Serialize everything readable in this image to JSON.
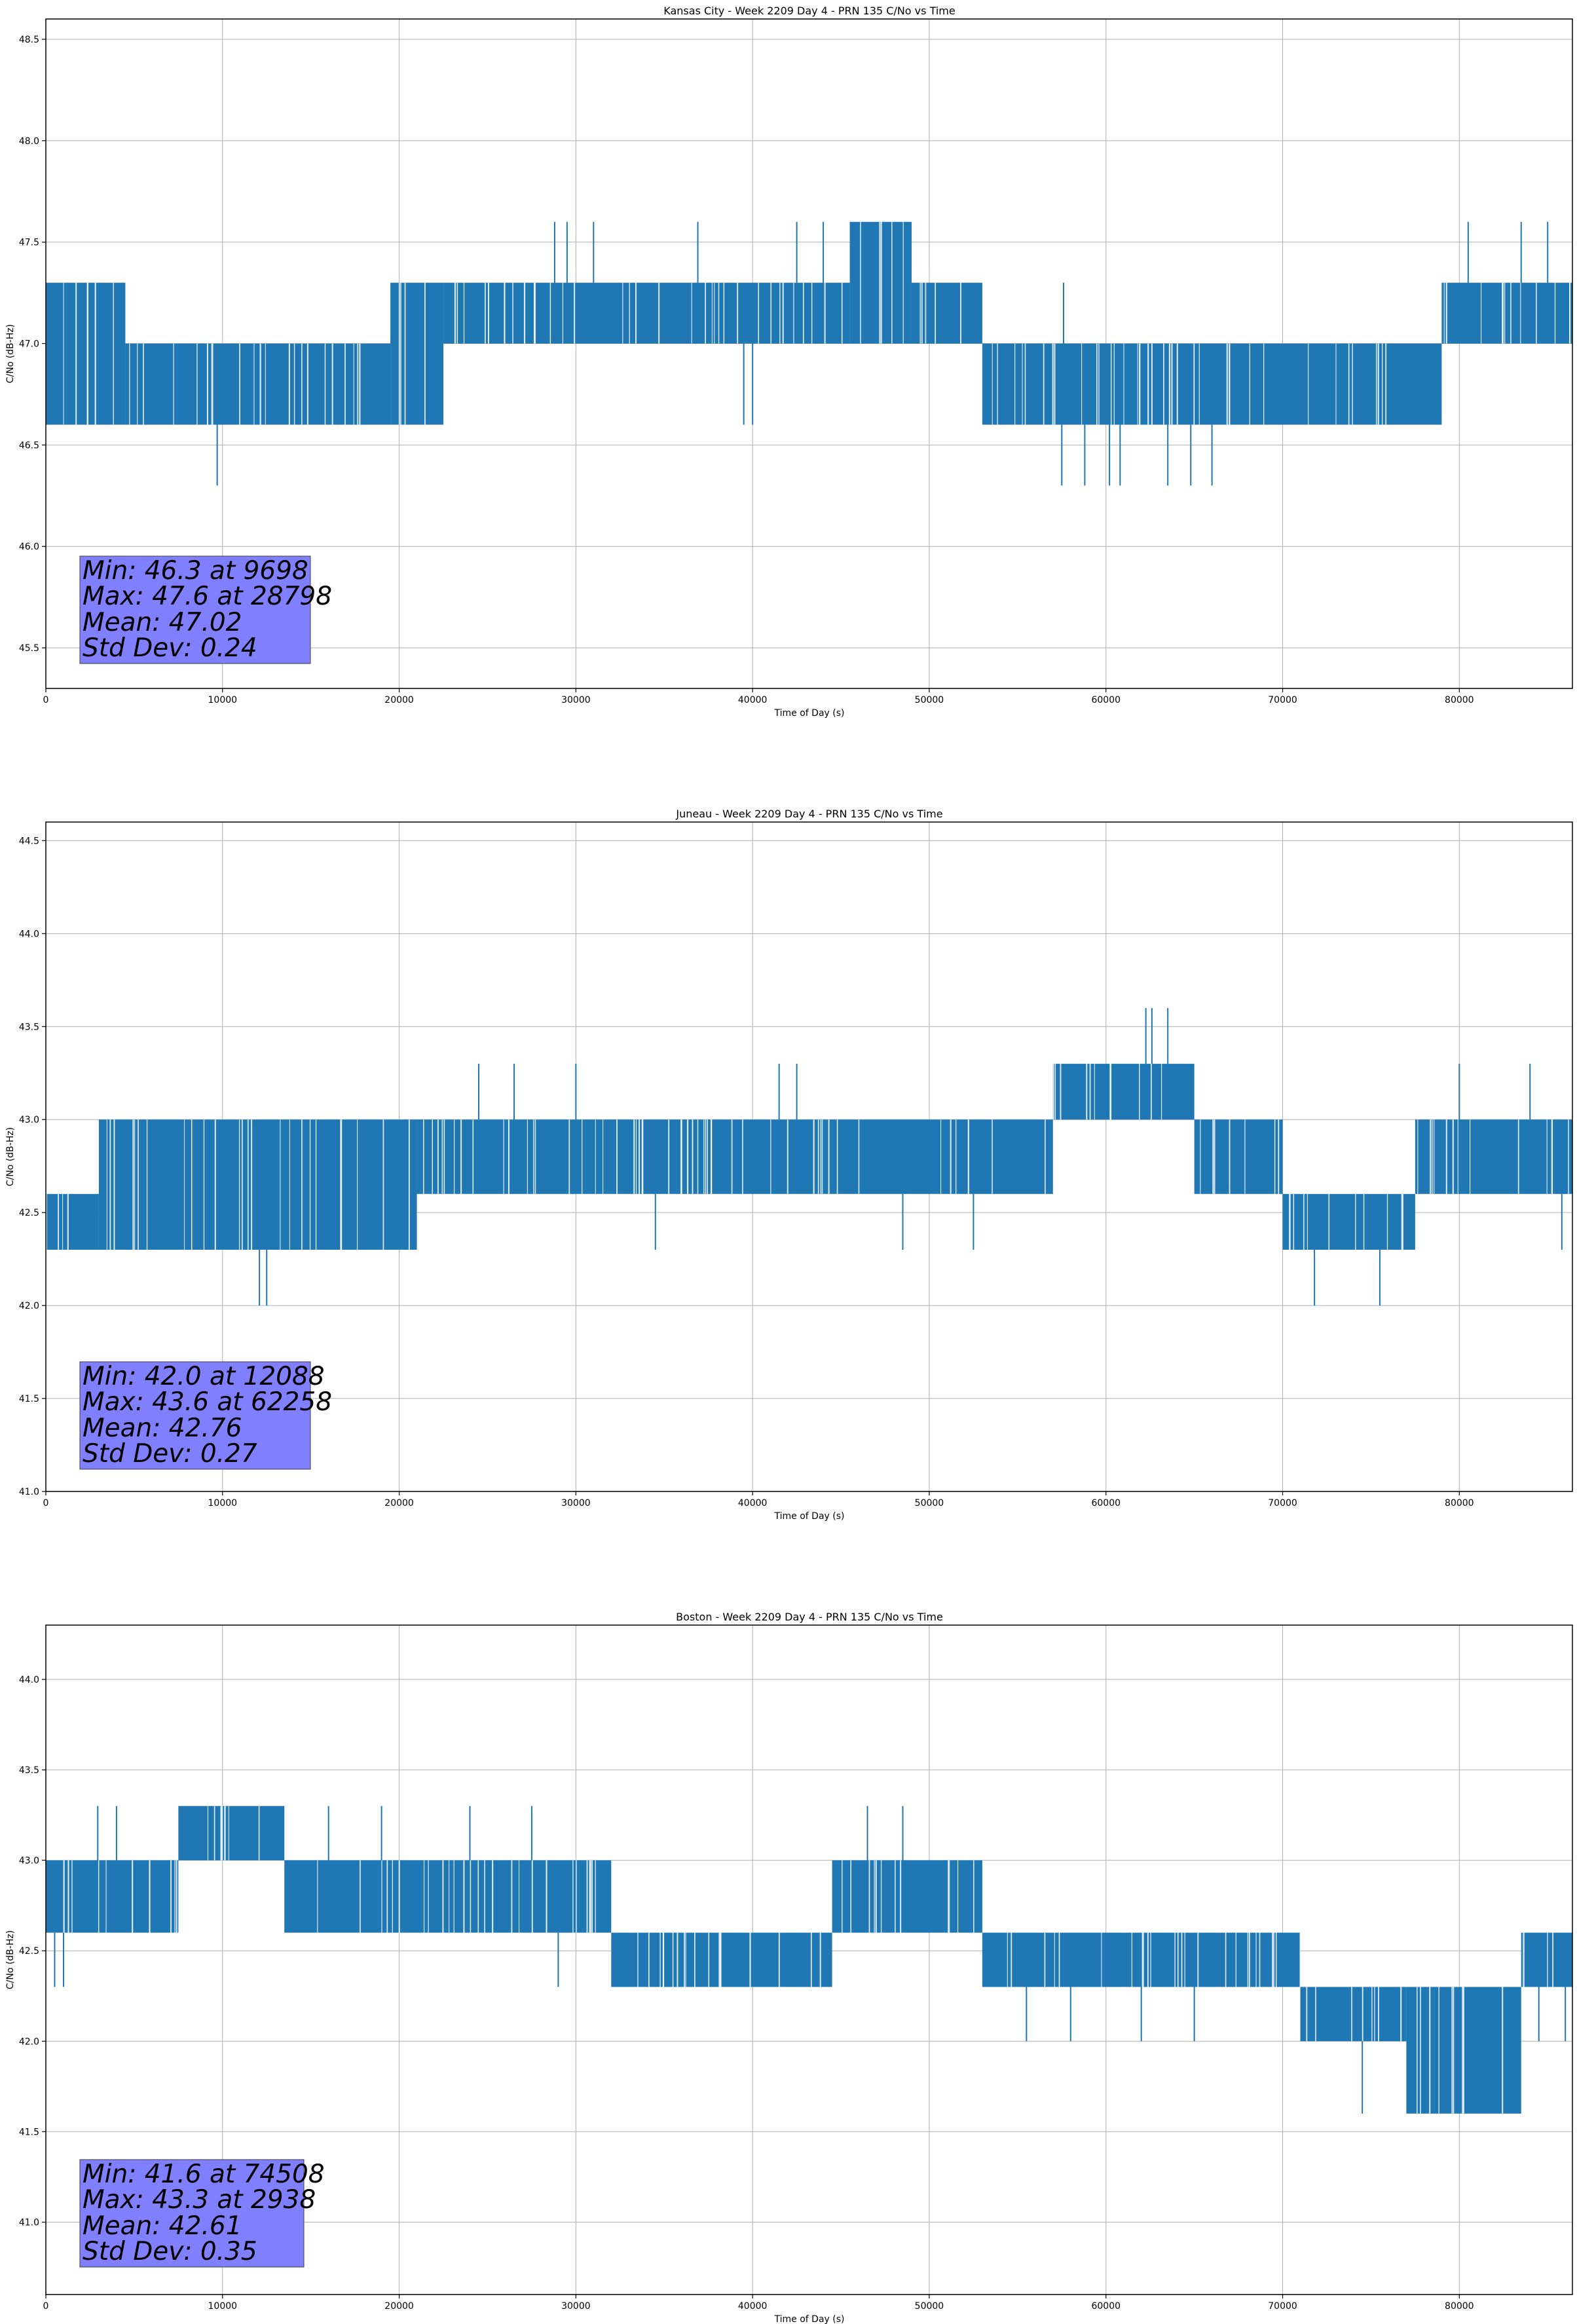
{
  "figure": {
    "colors": {
      "line": "#1f77b4",
      "grid": "#b0b0b0",
      "stats_box": "#8080ff",
      "axis": "#000000"
    }
  },
  "chart_data": [
    {
      "type": "line",
      "title": "Kansas City - Week 2209 Day 4 - PRN 135 C/No vs Time",
      "xlabel": "Time of Day (s)",
      "ylabel": "C/No (dB-Hz)",
      "xlim": [
        0,
        86400
      ],
      "ylim": [
        45.3,
        48.6
      ],
      "grid": true,
      "xticks": [
        0,
        10000,
        20000,
        30000,
        40000,
        50000,
        60000,
        70000,
        80000
      ],
      "xtick_labels": [
        "0",
        "10000",
        "20000",
        "30000",
        "40000",
        "50000",
        "60000",
        "70000",
        "80000"
      ],
      "yticks": [
        45.5,
        46.0,
        46.5,
        47.0,
        47.5,
        48.0,
        48.5
      ],
      "ytick_labels": [
        "45.5",
        "46.0",
        "46.5",
        "47.0",
        "47.5",
        "48.0",
        "48.5"
      ],
      "quantization": [
        46.3,
        46.6,
        47.0,
        47.3,
        47.6
      ],
      "dense_bands": [
        {
          "x": [
            0,
            4500
          ],
          "y": [
            46.6,
            47.3
          ]
        },
        {
          "x": [
            4500,
            19500
          ],
          "y": [
            46.6,
            47.0
          ]
        },
        {
          "x": [
            19500,
            22500
          ],
          "y": [
            46.6,
            47.3
          ]
        },
        {
          "x": [
            22500,
            45500
          ],
          "y": [
            47.0,
            47.3
          ]
        },
        {
          "x": [
            45500,
            49000
          ],
          "y": [
            47.0,
            47.6
          ]
        },
        {
          "x": [
            49000,
            53000
          ],
          "y": [
            47.0,
            47.3
          ]
        },
        {
          "x": [
            53000,
            79000
          ],
          "y": [
            46.6,
            47.0
          ]
        },
        {
          "x": [
            79000,
            86400
          ],
          "y": [
            47.0,
            47.3
          ]
        }
      ],
      "spikes": [
        {
          "x": 9698,
          "y": [
            46.3,
            46.6
          ]
        },
        {
          "x": 28798,
          "y": [
            47.3,
            47.6
          ]
        },
        {
          "x": 29500,
          "y": [
            47.3,
            47.6
          ]
        },
        {
          "x": 31000,
          "y": [
            47.3,
            47.6
          ]
        },
        {
          "x": 36900,
          "y": [
            47.3,
            47.6
          ]
        },
        {
          "x": 42500,
          "y": [
            47.3,
            47.6
          ]
        },
        {
          "x": 44000,
          "y": [
            47.3,
            47.6
          ]
        },
        {
          "x": 39500,
          "y": [
            46.6,
            47.0
          ]
        },
        {
          "x": 40000,
          "y": [
            46.6,
            47.0
          ]
        },
        {
          "x": 57500,
          "y": [
            46.3,
            46.6
          ]
        },
        {
          "x": 58800,
          "y": [
            46.3,
            46.6
          ]
        },
        {
          "x": 60200,
          "y": [
            46.3,
            46.6
          ]
        },
        {
          "x": 60800,
          "y": [
            46.3,
            46.6
          ]
        },
        {
          "x": 63500,
          "y": [
            46.3,
            46.6
          ]
        },
        {
          "x": 64800,
          "y": [
            46.3,
            46.6
          ]
        },
        {
          "x": 66000,
          "y": [
            46.3,
            46.6
          ]
        },
        {
          "x": 57600,
          "y": [
            47.0,
            47.3
          ]
        },
        {
          "x": 80500,
          "y": [
            47.3,
            47.6
          ]
        },
        {
          "x": 83500,
          "y": [
            47.3,
            47.6
          ]
        },
        {
          "x": 85000,
          "y": [
            47.3,
            47.6
          ]
        }
      ],
      "stats": {
        "min_label": "Min: 46.3 at 9698",
        "max_label": "Max: 47.6 at 28798",
        "mean_label": "Mean: 47.02",
        "std_label": "Std Dev: 0.24"
      }
    },
    {
      "type": "line",
      "title": "Juneau - Week 2209 Day 4 - PRN 135 C/No vs Time",
      "xlabel": "Time of Day (s)",
      "ylabel": "C/No (dB-Hz)",
      "xlim": [
        0,
        86400
      ],
      "ylim": [
        41.0,
        44.6
      ],
      "grid": true,
      "xticks": [
        0,
        10000,
        20000,
        30000,
        40000,
        50000,
        60000,
        70000,
        80000
      ],
      "xtick_labels": [
        "0",
        "10000",
        "20000",
        "30000",
        "40000",
        "50000",
        "60000",
        "70000",
        "80000"
      ],
      "yticks": [
        41.0,
        41.5,
        42.0,
        42.5,
        43.0,
        43.5,
        44.0,
        44.5
      ],
      "ytick_labels": [
        "41.0",
        "41.5",
        "42.0",
        "42.5",
        "43.0",
        "43.5",
        "44.0",
        "44.5"
      ],
      "quantization": [
        42.0,
        42.3,
        42.6,
        43.0,
        43.3,
        43.6
      ],
      "dense_bands": [
        {
          "x": [
            0,
            3000
          ],
          "y": [
            42.3,
            42.6
          ]
        },
        {
          "x": [
            3000,
            21000
          ],
          "y": [
            42.3,
            43.0
          ]
        },
        {
          "x": [
            21000,
            57000
          ],
          "y": [
            42.6,
            43.0
          ]
        },
        {
          "x": [
            57000,
            65000
          ],
          "y": [
            43.0,
            43.3
          ]
        },
        {
          "x": [
            65000,
            70000
          ],
          "y": [
            42.6,
            43.0
          ]
        },
        {
          "x": [
            70000,
            77500
          ],
          "y": [
            42.3,
            42.6
          ]
        },
        {
          "x": [
            77500,
            86400
          ],
          "y": [
            42.6,
            43.0
          ]
        }
      ],
      "spikes": [
        {
          "x": 12088,
          "y": [
            42.0,
            42.3
          ]
        },
        {
          "x": 12500,
          "y": [
            42.0,
            42.3
          ]
        },
        {
          "x": 71800,
          "y": [
            42.0,
            42.3
          ]
        },
        {
          "x": 75500,
          "y": [
            42.0,
            42.3
          ]
        },
        {
          "x": 62258,
          "y": [
            43.3,
            43.6
          ]
        },
        {
          "x": 62600,
          "y": [
            43.3,
            43.6
          ]
        },
        {
          "x": 63500,
          "y": [
            43.3,
            43.6
          ]
        },
        {
          "x": 24500,
          "y": [
            43.0,
            43.3
          ]
        },
        {
          "x": 26500,
          "y": [
            43.0,
            43.3
          ]
        },
        {
          "x": 30000,
          "y": [
            43.0,
            43.3
          ]
        },
        {
          "x": 41500,
          "y": [
            43.0,
            43.3
          ]
        },
        {
          "x": 42500,
          "y": [
            43.0,
            43.3
          ]
        },
        {
          "x": 80000,
          "y": [
            43.0,
            43.3
          ]
        },
        {
          "x": 84000,
          "y": [
            43.0,
            43.3
          ]
        },
        {
          "x": 34500,
          "y": [
            42.3,
            42.6
          ]
        },
        {
          "x": 48500,
          "y": [
            42.3,
            42.6
          ]
        },
        {
          "x": 52500,
          "y": [
            42.3,
            42.6
          ]
        },
        {
          "x": 85800,
          "y": [
            42.3,
            42.6
          ]
        }
      ],
      "stats": {
        "min_label": "Min: 42.0 at 12088",
        "max_label": "Max: 43.6 at 62258",
        "mean_label": "Mean: 42.76",
        "std_label": "Std Dev: 0.27"
      }
    },
    {
      "type": "line",
      "title": "Boston - Week 2209 Day 4 - PRN 135 C/No vs Time",
      "xlabel": "Time of Day (s)",
      "ylabel": "C/No (dB-Hz)",
      "xlim": [
        0,
        86400
      ],
      "ylim": [
        40.6,
        44.3
      ],
      "grid": true,
      "xticks": [
        0,
        10000,
        20000,
        30000,
        40000,
        50000,
        60000,
        70000,
        80000
      ],
      "xtick_labels": [
        "0",
        "10000",
        "20000",
        "30000",
        "40000",
        "50000",
        "60000",
        "70000",
        "80000"
      ],
      "yticks": [
        41.0,
        41.5,
        42.0,
        42.5,
        43.0,
        43.5,
        44.0
      ],
      "ytick_labels": [
        "41.0",
        "41.5",
        "42.0",
        "42.5",
        "43.0",
        "43.5",
        "44.0"
      ],
      "quantization": [
        41.6,
        42.0,
        42.3,
        42.6,
        43.0,
        43.3
      ],
      "dense_bands": [
        {
          "x": [
            0,
            7500
          ],
          "y": [
            42.6,
            43.0
          ]
        },
        {
          "x": [
            7500,
            13500
          ],
          "y": [
            43.0,
            43.3
          ]
        },
        {
          "x": [
            13500,
            32000
          ],
          "y": [
            42.6,
            43.0
          ]
        },
        {
          "x": [
            32000,
            44500
          ],
          "y": [
            42.3,
            42.6
          ]
        },
        {
          "x": [
            44500,
            53000
          ],
          "y": [
            42.6,
            43.0
          ]
        },
        {
          "x": [
            53000,
            71000
          ],
          "y": [
            42.3,
            42.6
          ]
        },
        {
          "x": [
            71000,
            77000
          ],
          "y": [
            42.0,
            42.3
          ]
        },
        {
          "x": [
            77000,
            83500
          ],
          "y": [
            41.6,
            42.3
          ]
        },
        {
          "x": [
            83500,
            86400
          ],
          "y": [
            42.3,
            42.6
          ]
        }
      ],
      "spikes": [
        {
          "x": 2938,
          "y": [
            43.0,
            43.3
          ]
        },
        {
          "x": 4000,
          "y": [
            43.0,
            43.3
          ]
        },
        {
          "x": 16000,
          "y": [
            43.0,
            43.3
          ]
        },
        {
          "x": 19000,
          "y": [
            43.0,
            43.3
          ]
        },
        {
          "x": 24000,
          "y": [
            43.0,
            43.3
          ]
        },
        {
          "x": 27500,
          "y": [
            43.0,
            43.3
          ]
        },
        {
          "x": 46500,
          "y": [
            43.0,
            43.3
          ]
        },
        {
          "x": 48500,
          "y": [
            43.0,
            43.3
          ]
        },
        {
          "x": 500,
          "y": [
            42.3,
            42.6
          ]
        },
        {
          "x": 1000,
          "y": [
            42.3,
            42.6
          ]
        },
        {
          "x": 29000,
          "y": [
            42.3,
            42.6
          ]
        },
        {
          "x": 55500,
          "y": [
            42.0,
            42.3
          ]
        },
        {
          "x": 58000,
          "y": [
            42.0,
            42.3
          ]
        },
        {
          "x": 62000,
          "y": [
            42.0,
            42.3
          ]
        },
        {
          "x": 65000,
          "y": [
            42.0,
            42.3
          ]
        },
        {
          "x": 74508,
          "y": [
            41.6,
            42.0
          ]
        },
        {
          "x": 84500,
          "y": [
            42.0,
            42.3
          ]
        },
        {
          "x": 86000,
          "y": [
            42.0,
            42.3
          ]
        }
      ],
      "stats": {
        "min_label": "Min: 41.6 at 74508",
        "max_label": "Max: 43.3 at 2938",
        "mean_label": "Mean: 42.61",
        "std_label": "Std Dev: 0.35"
      }
    }
  ]
}
